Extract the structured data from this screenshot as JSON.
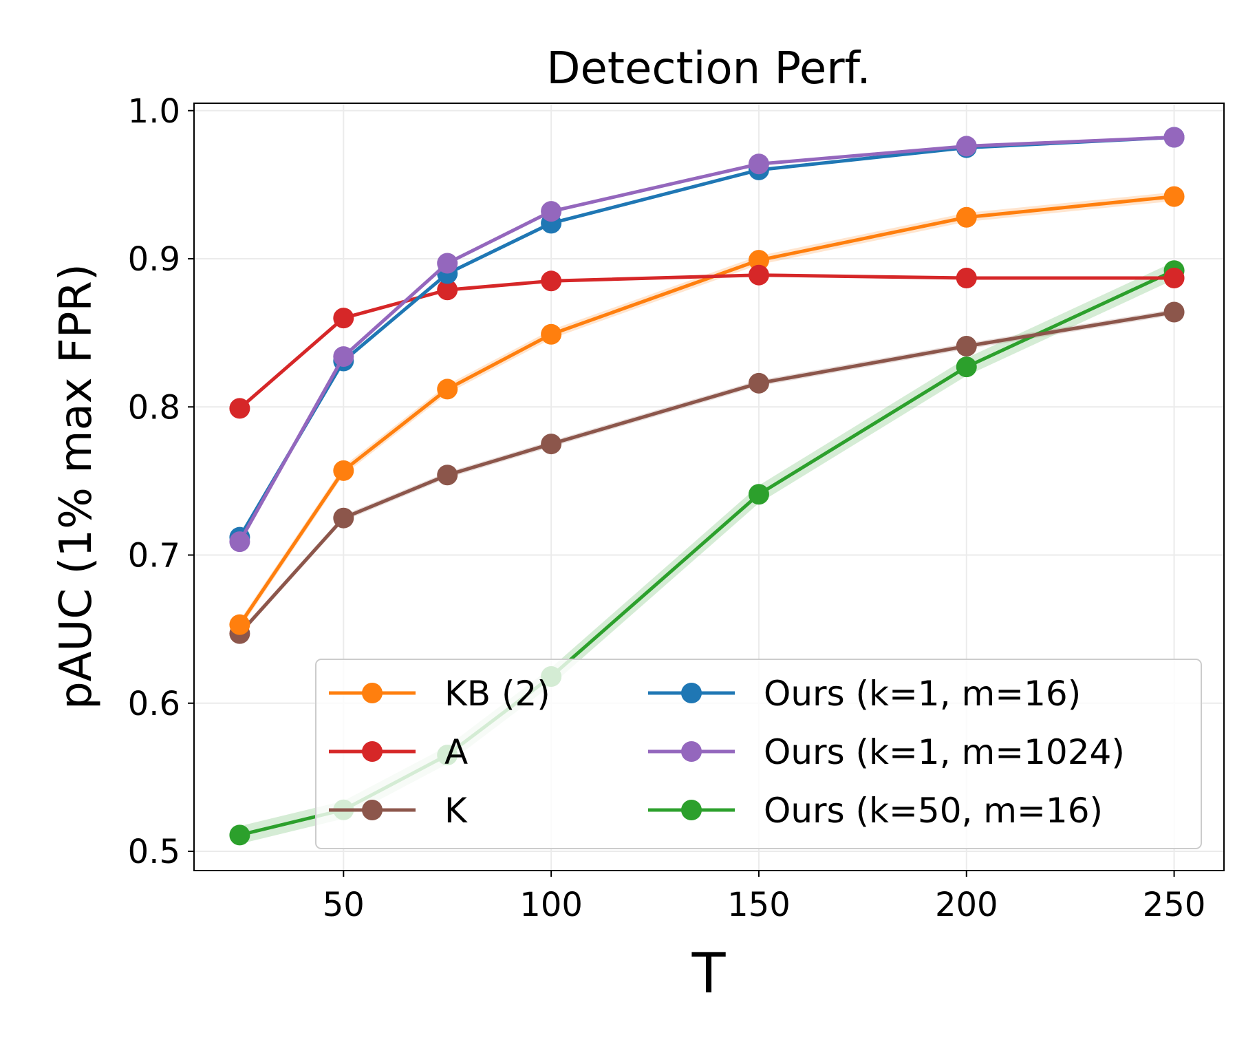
{
  "chart_data": {
    "type": "line",
    "title": "Detection Perf.",
    "xlabel": "T",
    "ylabel": "pAUC (1% max FPR)",
    "xlim": [
      14,
      262
    ],
    "ylim": [
      0.487,
      1.005
    ],
    "xticks": [
      50,
      100,
      150,
      200,
      250
    ],
    "xtick_labels": [
      "50",
      "100",
      "150",
      "200",
      "250"
    ],
    "yticks": [
      0.5,
      0.6,
      0.7,
      0.8,
      0.9,
      1.0
    ],
    "ytick_labels": [
      "0.5",
      "0.6",
      "0.7",
      "0.8",
      "0.9",
      "1.0"
    ],
    "grid": true,
    "legend_position": "lower-right",
    "x": [
      25,
      50,
      75,
      100,
      150,
      200,
      250
    ],
    "series": [
      {
        "name": "Ours (k=50, m=16)",
        "color": "#2ca02c",
        "values": [
          0.511,
          0.528,
          0.565,
          0.618,
          0.741,
          0.827,
          0.892
        ],
        "band": 0.006
      },
      {
        "name": "K",
        "color": "#8c564b",
        "values": [
          0.647,
          0.725,
          0.754,
          0.775,
          0.816,
          0.841,
          0.864
        ],
        "band": 0.002
      },
      {
        "name": "KB (2)",
        "color": "#ff7f0e",
        "values": [
          0.653,
          0.757,
          0.812,
          0.849,
          0.899,
          0.928,
          0.942
        ],
        "band": 0.003
      },
      {
        "name": "A",
        "color": "#d62728",
        "values": [
          0.799,
          0.86,
          0.879,
          0.885,
          0.889,
          0.887,
          0.887
        ],
        "band": 0.001
      },
      {
        "name": "Ours (k=1, m=16)",
        "color": "#1f77b4",
        "values": [
          0.712,
          0.831,
          0.89,
          0.924,
          0.96,
          0.975,
          0.982
        ],
        "band": 0.001
      },
      {
        "name": "Ours (k=1, m=1024)",
        "color": "#9467bd",
        "values": [
          0.709,
          0.834,
          0.897,
          0.932,
          0.964,
          0.976,
          0.982
        ],
        "band": 0.001
      }
    ],
    "legend_columns": [
      [
        "KB (2)",
        "A",
        "K"
      ],
      [
        "Ours (k=1, m=16)",
        "Ours (k=1, m=1024)",
        "Ours (k=50, m=16)"
      ]
    ]
  }
}
